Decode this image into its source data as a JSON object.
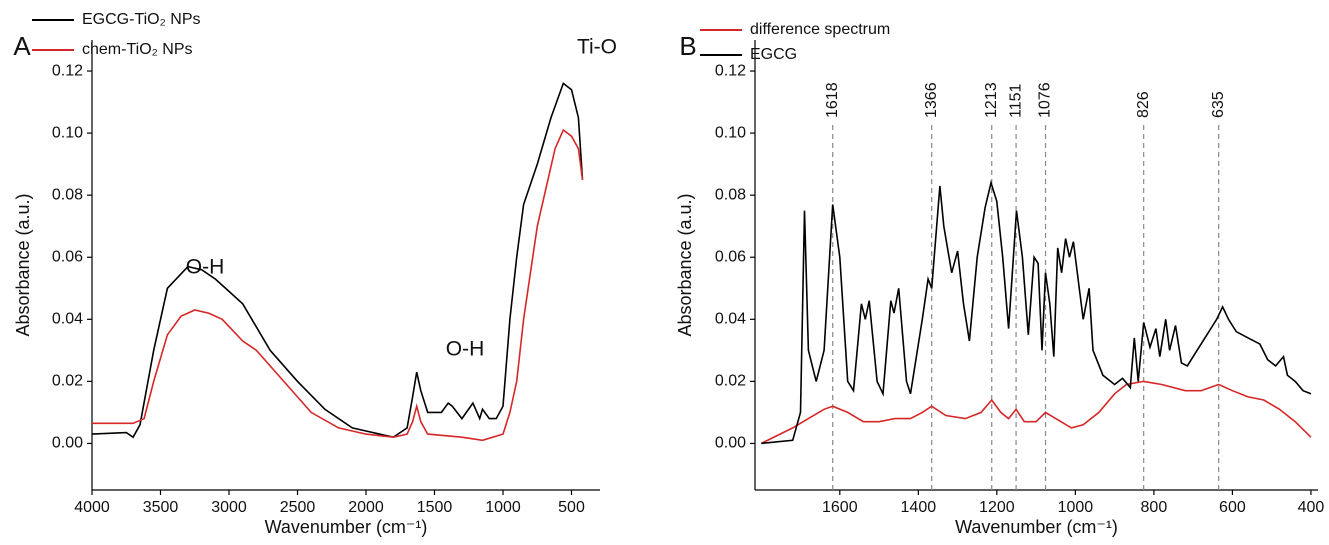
{
  "chart_data": [
    {
      "type": "line",
      "label": "A",
      "x_label": "Wavenumber (cm⁻¹)",
      "y_label": "Absorbance (a.u.)",
      "xlim": [
        4000,
        292
      ],
      "ylim": [
        -0.015,
        0.13
      ],
      "xticks": [
        4000,
        3500,
        3000,
        2500,
        2000,
        1500,
        1000,
        500
      ],
      "yticks": [
        {
          "value": 0,
          "label": "0.00"
        },
        0.02,
        0.04,
        0.06,
        0.08,
        {
          "value": 0.1,
          "label": "0.10"
        },
        0.12
      ],
      "annotations": [
        "O-H",
        "O-H",
        "Ti-O"
      ],
      "legend": "top-left",
      "series": [
        {
          "name": "EGCG-TiO₂ NPs",
          "color": "#000000",
          "x": [
            4000,
            3750,
            3700,
            3650,
            3550,
            3450,
            3300,
            3200,
            3100,
            2900,
            2700,
            2500,
            2300,
            2100,
            2000,
            1800,
            1700,
            1660,
            1630,
            1600,
            1550,
            1450,
            1400,
            1370,
            1300,
            1220,
            1170,
            1150,
            1100,
            1050,
            1000,
            950,
            900,
            850,
            750,
            650,
            560,
            500,
            450,
            420
          ],
          "values": [
            0.003,
            0.0035,
            0.002,
            0.006,
            0.03,
            0.05,
            0.057,
            0.056,
            0.053,
            0.045,
            0.03,
            0.02,
            0.011,
            0.005,
            0.004,
            0.002,
            0.005,
            0.015,
            0.023,
            0.017,
            0.01,
            0.01,
            0.013,
            0.012,
            0.008,
            0.013,
            0.008,
            0.011,
            0.008,
            0.008,
            0.012,
            0.04,
            0.06,
            0.077,
            0.09,
            0.105,
            0.116,
            0.114,
            0.105,
            0.085
          ]
        },
        {
          "name": "chem-TiO₂ NPs",
          "color": "#d62728",
          "x": [
            4000,
            3700,
            3620,
            3550,
            3450,
            3350,
            3250,
            3150,
            3050,
            2900,
            2800,
            2600,
            2400,
            2200,
            2000,
            1800,
            1700,
            1660,
            1630,
            1600,
            1550,
            1300,
            1150,
            1000,
            950,
            900,
            850,
            750,
            620,
            560,
            500,
            450,
            420
          ],
          "values": [
            0.0065,
            0.0065,
            0.008,
            0.02,
            0.035,
            0.041,
            0.043,
            0.042,
            0.04,
            0.033,
            0.03,
            0.02,
            0.01,
            0.005,
            0.003,
            0.002,
            0.003,
            0.007,
            0.012,
            0.007,
            0.003,
            0.002,
            0.001,
            0.003,
            0.01,
            0.02,
            0.04,
            0.07,
            0.095,
            0.101,
            0.099,
            0.095,
            0.085
          ]
        }
      ]
    },
    {
      "type": "line",
      "label": "B",
      "x_label": "Wavenumber (cm⁻¹)",
      "y_label": "Absorbance (a.u.)",
      "xlim": [
        1816,
        382
      ],
      "ylim": [
        -0.015,
        0.13
      ],
      "xticks": [
        1600,
        1400,
        1200,
        1000,
        800,
        600,
        400
      ],
      "yticks": [
        {
          "value": 0,
          "label": "0.00"
        },
        0.02,
        0.04,
        0.06,
        0.08,
        {
          "value": 0.1,
          "label": "0.10"
        },
        0.12
      ],
      "peaks": [
        1618,
        1366,
        1213,
        1151,
        1076,
        826,
        635
      ],
      "legend": "top-left",
      "series": [
        {
          "name": "difference spectrum",
          "color": "#d62728",
          "x": [
            1800,
            1720,
            1680,
            1640,
            1618,
            1580,
            1540,
            1500,
            1460,
            1420,
            1390,
            1366,
            1330,
            1280,
            1240,
            1213,
            1190,
            1170,
            1151,
            1130,
            1100,
            1076,
            1050,
            1010,
            980,
            940,
            900,
            870,
            826,
            780,
            720,
            680,
            635,
            600,
            560,
            520,
            480,
            440,
            400
          ],
          "values": [
            0.0,
            0.005,
            0.008,
            0.011,
            0.012,
            0.01,
            0.007,
            0.007,
            0.008,
            0.008,
            0.01,
            0.012,
            0.009,
            0.008,
            0.01,
            0.014,
            0.01,
            0.008,
            0.011,
            0.007,
            0.007,
            0.01,
            0.008,
            0.005,
            0.006,
            0.01,
            0.016,
            0.019,
            0.02,
            0.019,
            0.017,
            0.017,
            0.019,
            0.017,
            0.015,
            0.014,
            0.011,
            0.007,
            0.002
          ]
        },
        {
          "name": "EGCG",
          "color": "#000000",
          "x": [
            1800,
            1720,
            1700,
            1690,
            1680,
            1660,
            1640,
            1618,
            1600,
            1580,
            1565,
            1545,
            1535,
            1525,
            1505,
            1490,
            1470,
            1462,
            1450,
            1430,
            1420,
            1390,
            1375,
            1366,
            1345,
            1335,
            1315,
            1300,
            1285,
            1270,
            1250,
            1230,
            1215,
            1200,
            1185,
            1170,
            1150,
            1135,
            1120,
            1105,
            1095,
            1085,
            1076,
            1065,
            1055,
            1045,
            1035,
            1025,
            1015,
            1005,
            995,
            980,
            965,
            955,
            930,
            900,
            880,
            860,
            850,
            840,
            826,
            810,
            795,
            785,
            770,
            760,
            745,
            730,
            715,
            690,
            665,
            640,
            625,
            610,
            590,
            560,
            530,
            510,
            490,
            470,
            460,
            440,
            420,
            400
          ],
          "values": [
            0.0,
            0.001,
            0.01,
            0.075,
            0.03,
            0.02,
            0.03,
            0.077,
            0.06,
            0.02,
            0.017,
            0.045,
            0.04,
            0.046,
            0.02,
            0.016,
            0.046,
            0.042,
            0.05,
            0.02,
            0.016,
            0.04,
            0.053,
            0.05,
            0.083,
            0.07,
            0.055,
            0.062,
            0.045,
            0.033,
            0.06,
            0.076,
            0.084,
            0.078,
            0.06,
            0.037,
            0.075,
            0.06,
            0.035,
            0.06,
            0.058,
            0.03,
            0.055,
            0.045,
            0.028,
            0.063,
            0.055,
            0.066,
            0.06,
            0.065,
            0.055,
            0.04,
            0.05,
            0.03,
            0.022,
            0.019,
            0.021,
            0.018,
            0.034,
            0.02,
            0.039,
            0.031,
            0.037,
            0.028,
            0.04,
            0.03,
            0.038,
            0.026,
            0.025,
            0.03,
            0.035,
            0.04,
            0.044,
            0.04,
            0.036,
            0.034,
            0.032,
            0.027,
            0.025,
            0.028,
            0.022,
            0.02,
            0.017,
            0.016
          ]
        }
      ]
    }
  ]
}
